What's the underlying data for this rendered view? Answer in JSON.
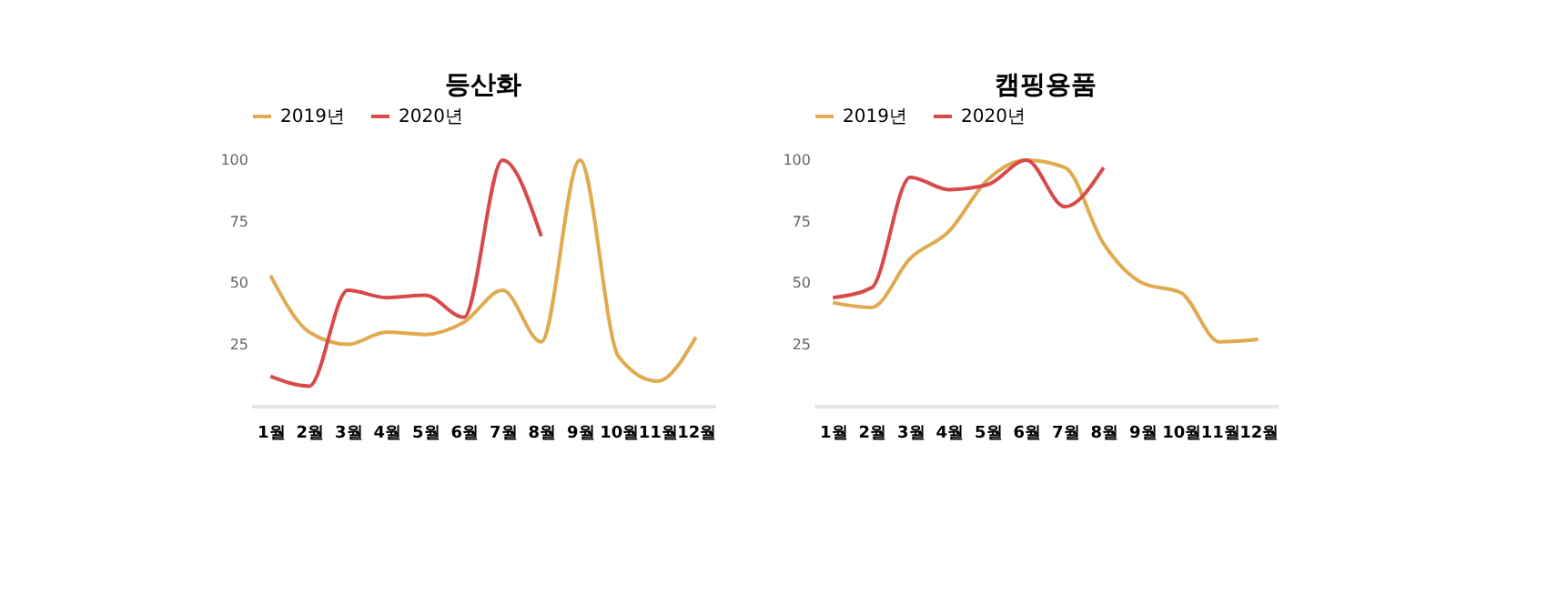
{
  "chart_data": [
    {
      "type": "line",
      "title": "등산화",
      "categories": [
        "1월",
        "2월",
        "3월",
        "4월",
        "5월",
        "6월",
        "7월",
        "8월",
        "9월",
        "10월",
        "11월",
        "12월"
      ],
      "ylim": [
        0,
        100
      ],
      "yticks": [
        25,
        50,
        75,
        100
      ],
      "grid": false,
      "legend": "top",
      "marker": "none",
      "line_style": "solid",
      "series": [
        {
          "name": "2019년",
          "color": "#e0aa4e",
          "values": [
            53,
            30,
            25,
            30,
            29,
            34,
            47,
            26,
            100,
            20,
            10,
            28
          ]
        },
        {
          "name": "2020년",
          "color": "#d84a4a",
          "values": [
            12,
            8,
            47,
            44,
            45,
            36,
            100,
            69,
            null,
            null,
            null,
            null
          ]
        }
      ]
    },
    {
      "type": "line",
      "title": "캠핑용품",
      "categories": [
        "1월",
        "2월",
        "3월",
        "4월",
        "5월",
        "6월",
        "7월",
        "8월",
        "9월",
        "10월",
        "11월",
        "12월"
      ],
      "ylim": [
        0,
        100
      ],
      "yticks": [
        25,
        50,
        75,
        100
      ],
      "grid": false,
      "legend": "top",
      "marker": "none",
      "line_style": "solid",
      "series": [
        {
          "name": "2019년",
          "color": "#e0aa4e",
          "values": [
            42,
            40,
            60,
            71,
            92,
            100,
            97,
            66,
            50,
            46,
            26,
            27
          ]
        },
        {
          "name": "2020년",
          "color": "#d84a4a",
          "values": [
            44,
            48,
            93,
            88,
            90,
            100,
            81,
            97,
            null,
            null,
            null,
            null
          ]
        }
      ]
    }
  ]
}
